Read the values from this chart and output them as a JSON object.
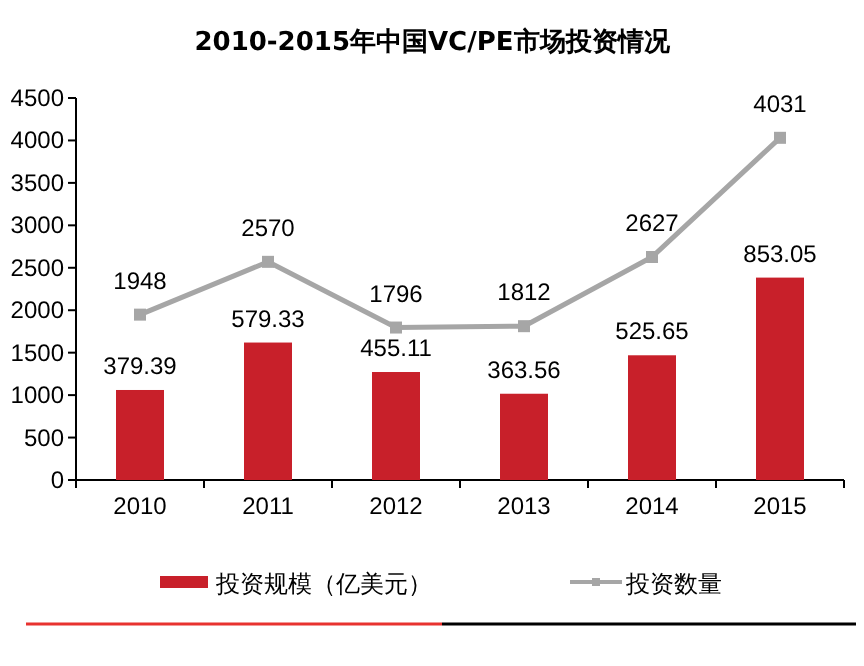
{
  "chart_data": {
    "type": "bar",
    "title": "2010-2015年中国VC/PE市场投资情况",
    "categories": [
      "2010",
      "2011",
      "2012",
      "2013",
      "2014",
      "2015"
    ],
    "series": [
      {
        "name": "投资规模（亿美元）",
        "axis": "y2",
        "color": "#c8202a",
        "values": [
          379.39,
          579.33,
          455.11,
          363.56,
          525.65,
          853.05
        ]
      },
      {
        "name": "投资数量",
        "type": "line",
        "color": "#a6a6a6",
        "values": [
          1948,
          2570,
          1796,
          1812,
          2627,
          4031
        ]
      }
    ],
    "ylim": [
      0,
      4500
    ],
    "yticks": [
      0,
      500,
      1000,
      1500,
      2000,
      2500,
      3000,
      3500,
      4000,
      4500
    ],
    "y2lim": [
      0,
      1610
    ],
    "marker": "square",
    "data_labels": true,
    "legend": "bottom",
    "grid": false
  }
}
